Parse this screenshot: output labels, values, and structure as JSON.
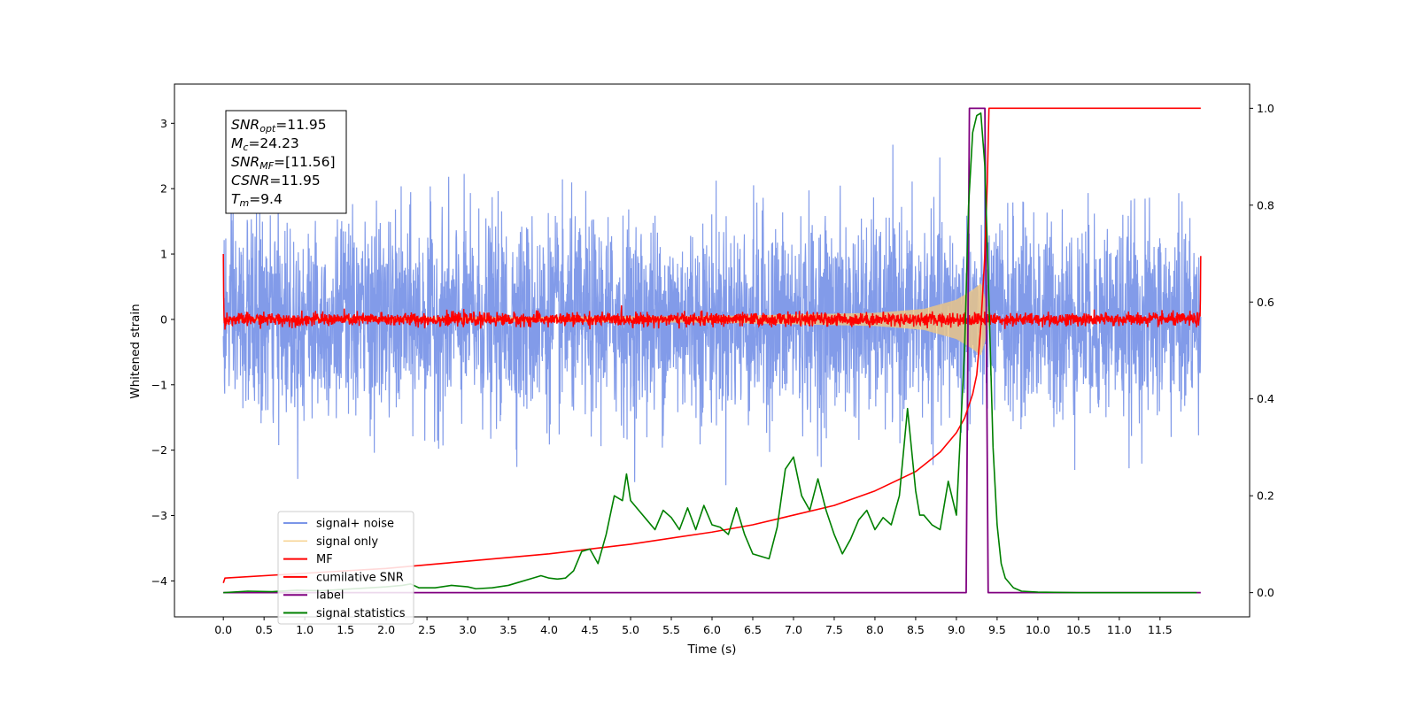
{
  "chart_data": {
    "type": "line",
    "title": "",
    "xlabel": "Time (s)",
    "ylabel": "Whitened strain",
    "ylabel_right": "",
    "xlim": [
      -0.6,
      12.6
    ],
    "ylim": [
      -4.55,
      3.6
    ],
    "ylim_right": [
      -0.05,
      1.05
    ],
    "x_ticks": [
      0.0,
      0.5,
      1.0,
      1.5,
      2.0,
      2.5,
      3.0,
      3.5,
      4.0,
      4.5,
      5.0,
      5.5,
      6.0,
      6.5,
      7.0,
      7.5,
      8.0,
      8.5,
      9.0,
      9.5,
      10.0,
      10.5,
      11.0,
      11.5
    ],
    "x_tick_labels": [
      "0.0",
      "0.5",
      "1.0",
      "1.5",
      "2.0",
      "2.5",
      "3.0",
      "3.5",
      "4.0",
      "4.5",
      "5.0",
      "5.5",
      "6.0",
      "6.5",
      "7.0",
      "7.5",
      "8.0",
      "8.5",
      "9.0",
      "9.5",
      "10.0",
      "10.5",
      "11.0",
      "11.5"
    ],
    "y_ticks": [
      3,
      2,
      1,
      0,
      -1,
      -2,
      -3,
      -4
    ],
    "y_tick_labels": [
      "3",
      "2",
      "1",
      "0",
      "−1",
      "−2",
      "−3",
      "−4"
    ],
    "y_ticks_right": [
      1.0,
      0.8,
      0.6,
      0.4,
      0.2,
      0.0
    ],
    "y_tick_labels_right": [
      "1.0",
      "0.8",
      "0.6",
      "0.4",
      "0.2",
      "0.0"
    ],
    "grid": false,
    "legend_position": "lower-left",
    "annotation": {
      "lines": [
        {
          "sym": "SNR",
          "sub": "opt",
          "value": "=11.95"
        },
        {
          "sym": "M",
          "sub": "c",
          "value": "=24.23"
        },
        {
          "sym": "SNR",
          "sub": "MF",
          "value": "=[11.56]"
        },
        {
          "sym": "CSNR",
          "sub": "",
          "value": "=11.95"
        },
        {
          "sym": "T",
          "sub": "m",
          "value": "=9.4"
        }
      ]
    },
    "series": [
      {
        "name": "signal+ noise",
        "color": "#7b96e8",
        "axis": "left",
        "kind": "noise",
        "x_range": [
          0.0,
          12.0
        ],
        "amplitude_std": 0.75,
        "peak_range": [
          -4.15,
          3.15
        ]
      },
      {
        "name": "signal only",
        "color": "#f5c97b",
        "axis": "left",
        "kind": "chirp",
        "x_range": [
          0.0,
          9.4
        ],
        "envelope_points": [
          [
            0.0,
            0.02
          ],
          [
            6.0,
            0.05
          ],
          [
            8.0,
            0.1
          ],
          [
            8.6,
            0.16
          ],
          [
            9.0,
            0.3
          ],
          [
            9.2,
            0.45
          ],
          [
            9.3,
            0.55
          ],
          [
            9.37,
            0.25
          ],
          [
            9.4,
            0.0
          ]
        ]
      },
      {
        "name": "MF",
        "color": "#ff0000",
        "axis": "left",
        "kind": "mf",
        "x_range": [
          0.0,
          12.0
        ],
        "amplitude_std": 0.05,
        "edge_values": [
          1.0,
          0.97
        ]
      },
      {
        "name": "cumilative SNR",
        "color": "#ff0000",
        "axis": "right",
        "x": [
          0.0,
          0.02,
          1.0,
          2.0,
          3.0,
          4.0,
          5.0,
          6.0,
          6.5,
          7.0,
          7.5,
          8.0,
          8.5,
          8.8,
          9.0,
          9.1,
          9.2,
          9.25,
          9.3,
          9.35,
          9.38,
          9.4,
          9.45,
          12.0
        ],
        "y": [
          0.02,
          0.03,
          0.04,
          0.05,
          0.065,
          0.08,
          0.1,
          0.125,
          0.14,
          0.16,
          0.18,
          0.21,
          0.25,
          0.29,
          0.33,
          0.36,
          0.41,
          0.45,
          0.55,
          0.7,
          0.85,
          1.0,
          1.0,
          1.0
        ]
      },
      {
        "name": "label",
        "color": "#800080",
        "axis": "right",
        "x": [
          0.0,
          9.12,
          9.16,
          9.35,
          9.39,
          12.0
        ],
        "y": [
          0.0,
          0.0,
          1.0,
          1.0,
          0.0,
          0.0
        ]
      },
      {
        "name": "signal statistics",
        "color": "#008000",
        "axis": "right",
        "x": [
          0.0,
          0.3,
          0.6,
          0.9,
          1.2,
          1.5,
          1.8,
          2.0,
          2.2,
          2.3,
          2.4,
          2.6,
          2.8,
          3.0,
          3.1,
          3.3,
          3.5,
          3.6,
          3.8,
          3.9,
          4.0,
          4.1,
          4.2,
          4.3,
          4.4,
          4.5,
          4.6,
          4.7,
          4.8,
          4.9,
          4.95,
          5.0,
          5.1,
          5.2,
          5.3,
          5.4,
          5.5,
          5.6,
          5.7,
          5.8,
          5.9,
          6.0,
          6.1,
          6.2,
          6.3,
          6.4,
          6.5,
          6.6,
          6.7,
          6.8,
          6.9,
          7.0,
          7.1,
          7.2,
          7.3,
          7.4,
          7.5,
          7.6,
          7.7,
          7.8,
          7.9,
          8.0,
          8.1,
          8.2,
          8.3,
          8.4,
          8.5,
          8.55,
          8.6,
          8.7,
          8.8,
          8.9,
          9.0,
          9.1,
          9.15,
          9.2,
          9.25,
          9.3,
          9.35,
          9.4,
          9.45,
          9.5,
          9.55,
          9.6,
          9.7,
          9.8,
          10.0,
          10.5,
          11.0,
          11.5,
          11.95
        ],
        "y": [
          0.0,
          0.003,
          0.002,
          0.005,
          0.004,
          0.007,
          0.01,
          0.012,
          0.015,
          0.018,
          0.01,
          0.01,
          0.015,
          0.012,
          0.008,
          0.01,
          0.015,
          0.02,
          0.03,
          0.035,
          0.03,
          0.028,
          0.03,
          0.045,
          0.085,
          0.09,
          0.06,
          0.12,
          0.2,
          0.19,
          0.245,
          0.19,
          0.17,
          0.15,
          0.13,
          0.17,
          0.155,
          0.13,
          0.175,
          0.13,
          0.18,
          0.14,
          0.135,
          0.12,
          0.175,
          0.12,
          0.08,
          0.075,
          0.07,
          0.135,
          0.255,
          0.28,
          0.2,
          0.17,
          0.235,
          0.17,
          0.12,
          0.08,
          0.11,
          0.15,
          0.17,
          0.13,
          0.155,
          0.14,
          0.2,
          0.38,
          0.21,
          0.16,
          0.16,
          0.14,
          0.13,
          0.23,
          0.16,
          0.5,
          0.8,
          0.95,
          0.985,
          0.99,
          0.88,
          0.6,
          0.3,
          0.14,
          0.06,
          0.03,
          0.01,
          0.003,
          0.001,
          0.0,
          0.0,
          0.0,
          0.0
        ]
      }
    ]
  }
}
